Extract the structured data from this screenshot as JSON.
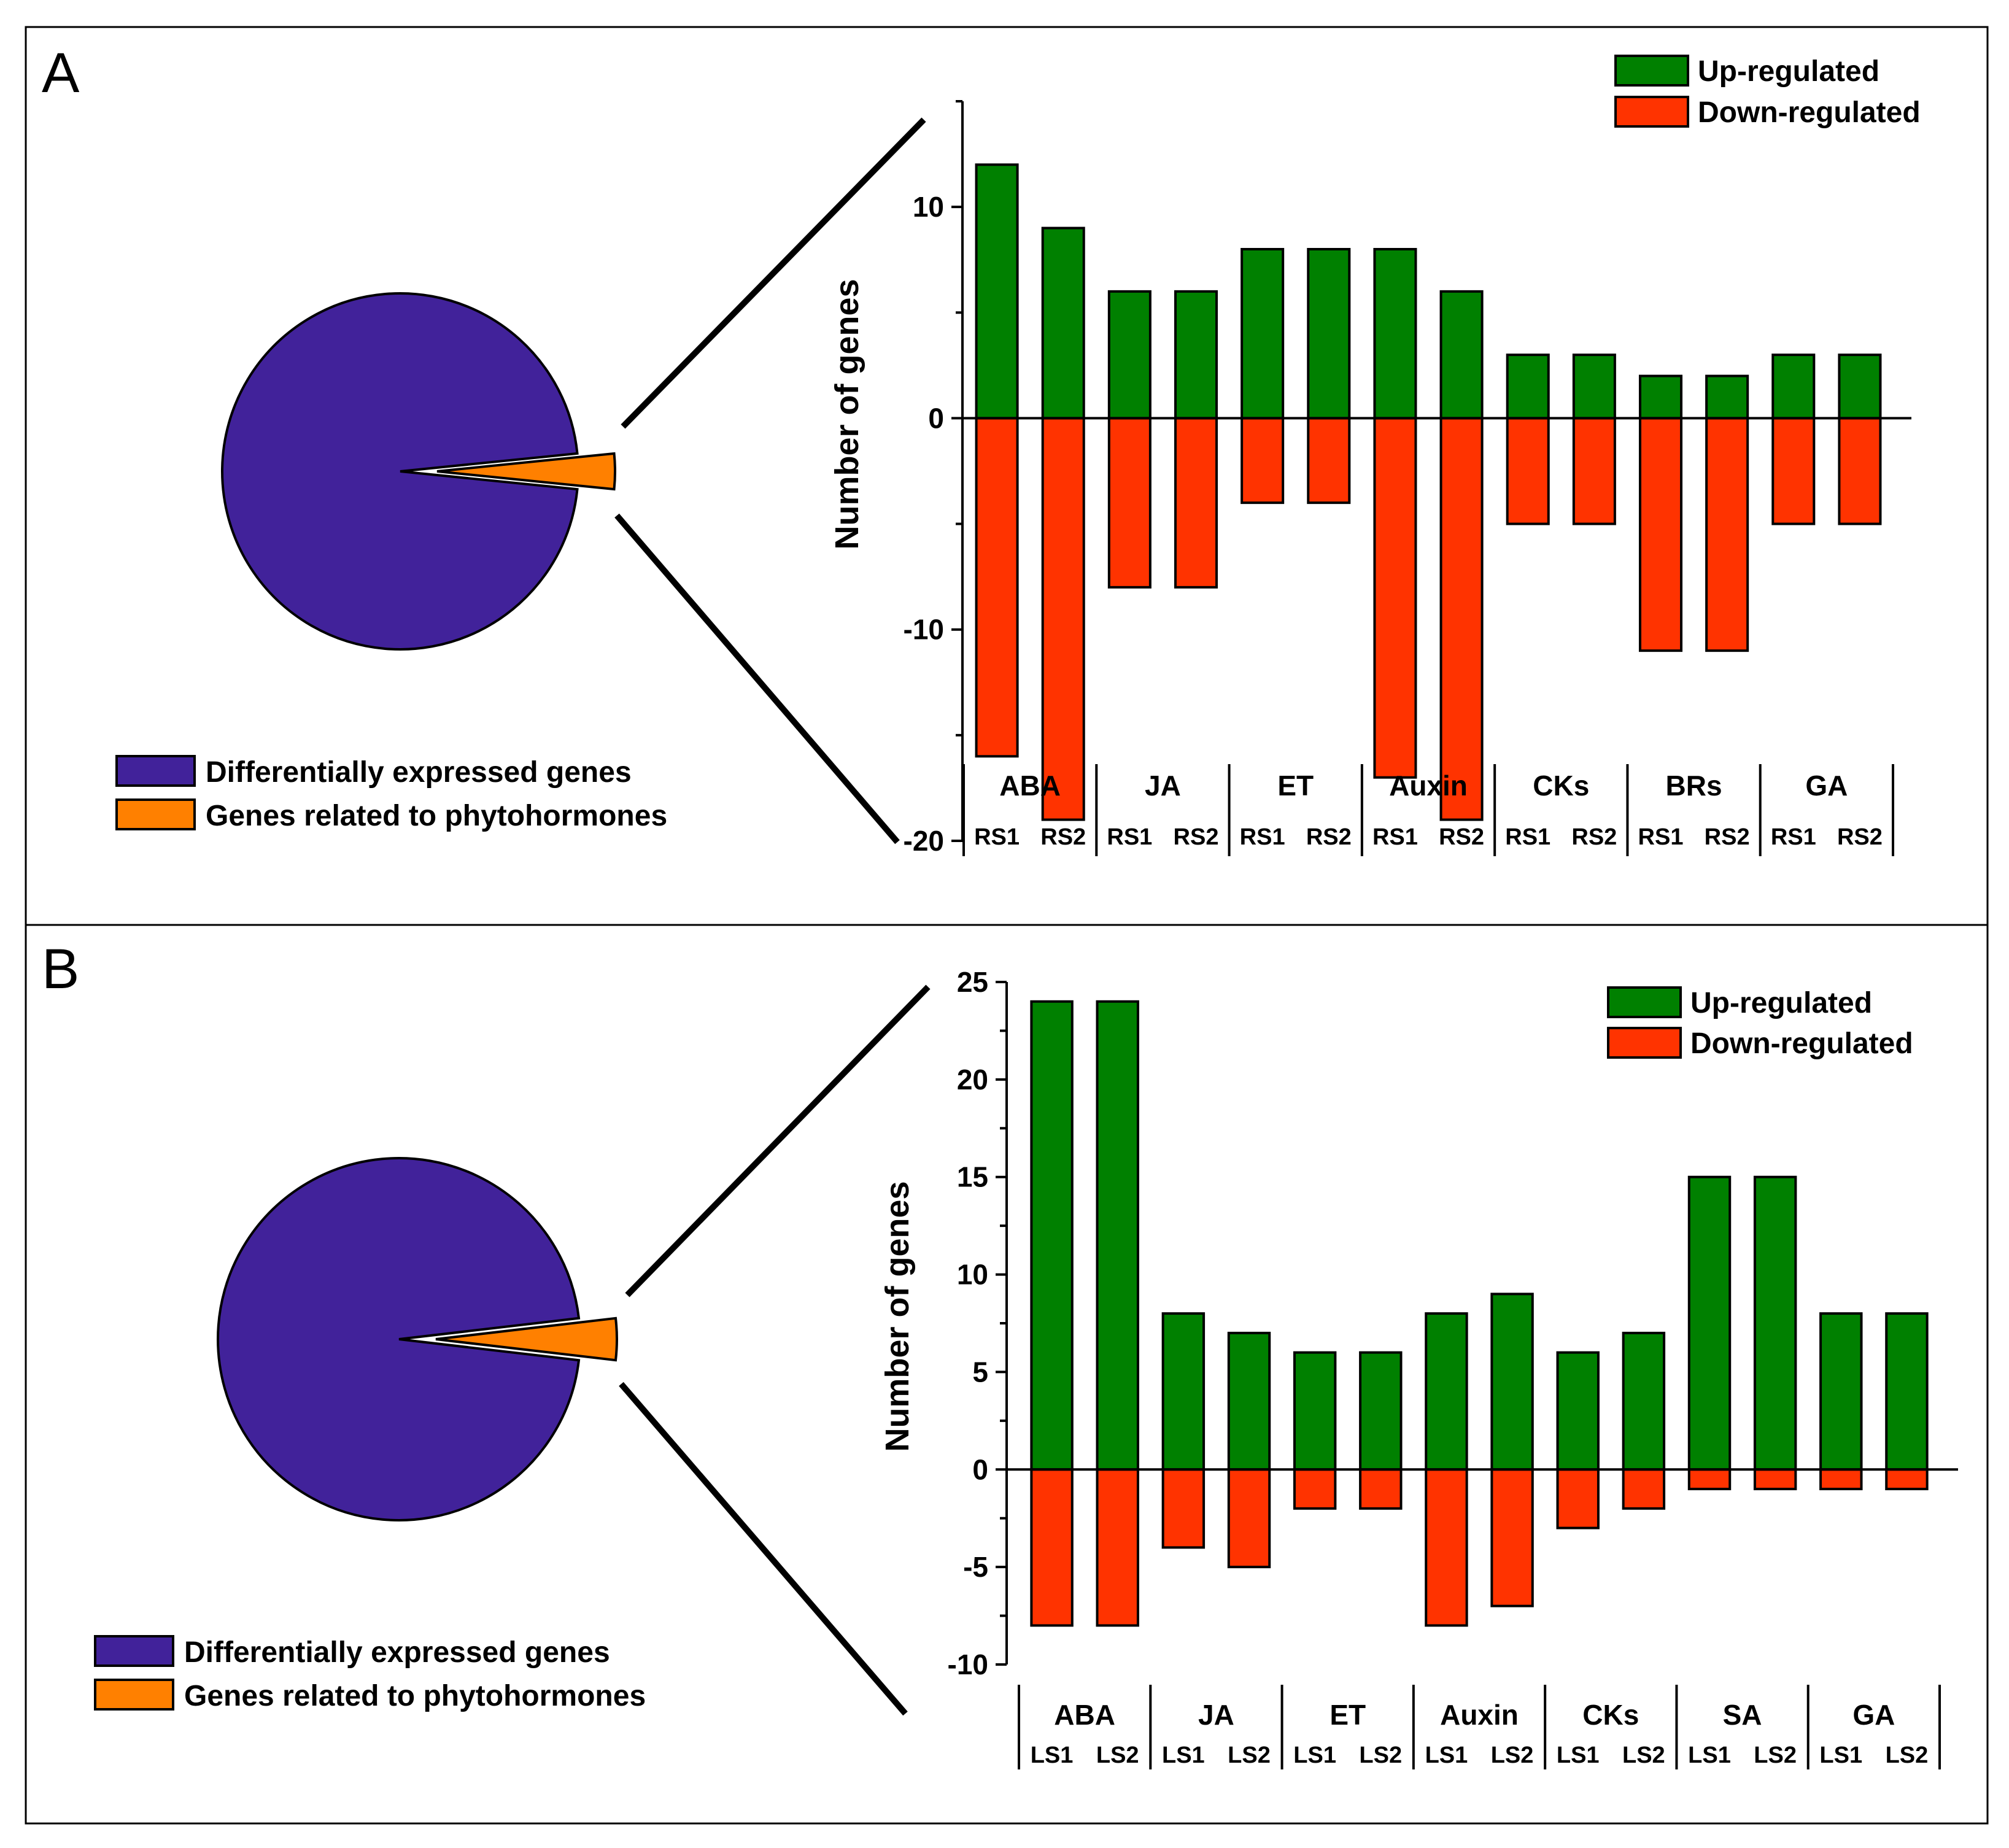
{
  "colors": {
    "up": "#008000",
    "down": "#FF3300",
    "deg": "#41229A",
    "phyto": "#FF8000"
  },
  "panels": [
    {
      "letter": "A",
      "pie_legend": [
        "Differentially expressed genes",
        "Genes related to phytohormones"
      ],
      "bar_legend": [
        "Up-regulated",
        "Down-regulated"
      ]
    },
    {
      "letter": "B",
      "pie_legend": [
        "Differentially expressed genes",
        "Genes related to phytohormones"
      ],
      "bar_legend": [
        "Up-regulated",
        "Down-regulated"
      ]
    }
  ],
  "chart_data": [
    {
      "type": "pie",
      "slices": [
        {
          "label": "Differentially expressed genes",
          "value": 96.8
        },
        {
          "label": "Genes related to phytohormones",
          "value": 3.2
        }
      ]
    },
    {
      "type": "bar",
      "ylabel": "Number of genes",
      "ylim": [
        -20,
        15
      ],
      "yticks": [
        -20,
        -10,
        0,
        10
      ],
      "groups": [
        "ABA",
        "JA",
        "ET",
        "Auxin",
        "CKs",
        "BRs",
        "GA"
      ],
      "categories": [
        "RS1",
        "RS2",
        "RS1",
        "RS2",
        "RS1",
        "RS2",
        "RS1",
        "RS2",
        "RS1",
        "RS2",
        "RS1",
        "RS2",
        "RS1",
        "RS2"
      ],
      "series": [
        {
          "name": "Up-regulated",
          "values": [
            12,
            9,
            6,
            6,
            8,
            8,
            8,
            6,
            3,
            3,
            2,
            2,
            3,
            3
          ]
        },
        {
          "name": "Down-regulated",
          "values": [
            -16,
            -19,
            -8,
            -8,
            -4,
            -4,
            -17,
            -19,
            -5,
            -5,
            -11,
            -11,
            -5,
            -5
          ]
        }
      ],
      "legend": "top-right"
    },
    {
      "type": "pie",
      "slices": [
        {
          "label": "Differentially expressed genes",
          "value": 96.3
        },
        {
          "label": "Genes related to phytohormones",
          "value": 3.7
        }
      ]
    },
    {
      "type": "bar",
      "ylabel": "Number of genes",
      "ylim": [
        -10,
        25
      ],
      "yticks": [
        -10,
        -5,
        0,
        5,
        10,
        15,
        20,
        25
      ],
      "groups": [
        "ABA",
        "JA",
        "ET",
        "Auxin",
        "CKs",
        "SA",
        "GA"
      ],
      "categories": [
        "LS1",
        "LS2",
        "LS1",
        "LS2",
        "LS1",
        "LS2",
        "LS1",
        "LS2",
        "LS1",
        "LS2",
        "LS1",
        "LS2",
        "LS1",
        "LS2"
      ],
      "series": [
        {
          "name": "Up-regulated",
          "values": [
            24,
            24,
            8,
            7,
            6,
            6,
            8,
            9,
            6,
            7,
            15,
            15,
            8,
            8
          ]
        },
        {
          "name": "Down-regulated",
          "values": [
            -8,
            -8,
            -4,
            -5,
            -2,
            -2,
            -8,
            -7,
            -3,
            -2,
            -1,
            -1,
            -1,
            -1
          ]
        }
      ],
      "legend": "top-right"
    }
  ]
}
